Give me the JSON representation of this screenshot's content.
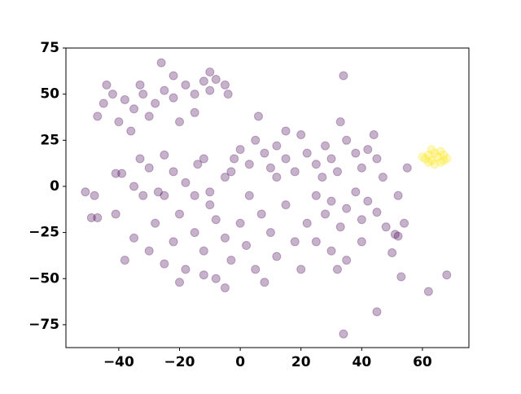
{
  "chart_data": {
    "type": "scatter",
    "xlim": [
      -57.4,
      75.3
    ],
    "ylim": [
      -87.4,
      75
    ],
    "xticks": [
      {
        "value": -40,
        "label": "−40"
      },
      {
        "value": -20,
        "label": "−20"
      },
      0,
      20,
      40,
      60
    ],
    "yticks": [
      {
        "value": -75,
        "label": "−75"
      },
      {
        "value": -50,
        "label": "−50"
      },
      {
        "value": -25,
        "label": "−25"
      },
      0,
      25,
      50,
      75
    ],
    "grid": false,
    "series": [
      {
        "color": "#440154",
        "x": [
          -45,
          -42,
          -38,
          -35,
          -32,
          -28,
          -25,
          -22,
          -18,
          -15,
          -12,
          -10,
          -8,
          -5,
          -47,
          -40,
          -36,
          -30,
          -26,
          -22,
          -15,
          -20,
          -44,
          -33,
          -4,
          -10,
          -2,
          0,
          3,
          5,
          8,
          10,
          12,
          15,
          18,
          20,
          22,
          25,
          28,
          30,
          32,
          35,
          38,
          40,
          42,
          45,
          6,
          15,
          33,
          44,
          -3,
          27,
          47,
          12,
          -35,
          -30,
          -28,
          -25,
          -22,
          -20,
          -18,
          -15,
          -12,
          -10,
          -8,
          -5,
          -3,
          0,
          2,
          5,
          7,
          10,
          12,
          15,
          18,
          20,
          -32,
          -25,
          -15,
          -38,
          -5,
          8,
          22,
          -20,
          -12,
          3,
          -8,
          25,
          28,
          30,
          33,
          35,
          38,
          40,
          42,
          45,
          30,
          35,
          32,
          25,
          40,
          -51,
          -48,
          -49,
          -47,
          -41,
          -39,
          -41,
          -33,
          -30,
          -25,
          -22,
          -27,
          -18,
          -14,
          -10,
          -5,
          -12,
          -35,
          34,
          34,
          45,
          62,
          68,
          53,
          50,
          52,
          54,
          55,
          52,
          51,
          48
        ],
        "values": [
          45,
          50,
          47,
          42,
          50,
          45,
          52,
          48,
          55,
          50,
          57,
          52,
          58,
          55,
          38,
          35,
          30,
          38,
          67,
          60,
          40,
          35,
          55,
          55,
          50,
          62,
          15,
          20,
          12,
          25,
          18,
          10,
          22,
          15,
          8,
          28,
          18,
          12,
          22,
          15,
          8,
          25,
          18,
          10,
          20,
          15,
          38,
          30,
          35,
          28,
          8,
          5,
          5,
          5,
          -28,
          -35,
          -20,
          -42,
          -30,
          -15,
          -45,
          -25,
          -35,
          -10,
          -50,
          -28,
          -40,
          -20,
          -32,
          -45,
          -15,
          -25,
          -38,
          -10,
          -30,
          -45,
          -5,
          -5,
          -5,
          -40,
          -55,
          -52,
          -20,
          -52,
          -48,
          -5,
          -18,
          -5,
          -15,
          -8,
          -22,
          -12,
          -3,
          -18,
          -8,
          -14,
          -35,
          -40,
          -45,
          -30,
          -30,
          -3,
          -5,
          -17,
          -17,
          7,
          7,
          -15,
          15,
          10,
          17,
          8,
          -3,
          2,
          12,
          -3,
          5,
          15,
          0,
          60,
          -80,
          -68,
          -57,
          -48,
          -49,
          -36,
          -27,
          -20,
          10,
          -5,
          -26,
          -22
        ]
      },
      {
        "color": "#fde725",
        "x": [
          61,
          62,
          63,
          64,
          65,
          66,
          67,
          68,
          60,
          64,
          63,
          66,
          62,
          67
        ],
        "values": [
          15,
          17,
          14,
          18,
          16,
          13,
          17,
          15,
          16,
          12,
          20,
          19,
          13,
          14
        ]
      }
    ]
  }
}
